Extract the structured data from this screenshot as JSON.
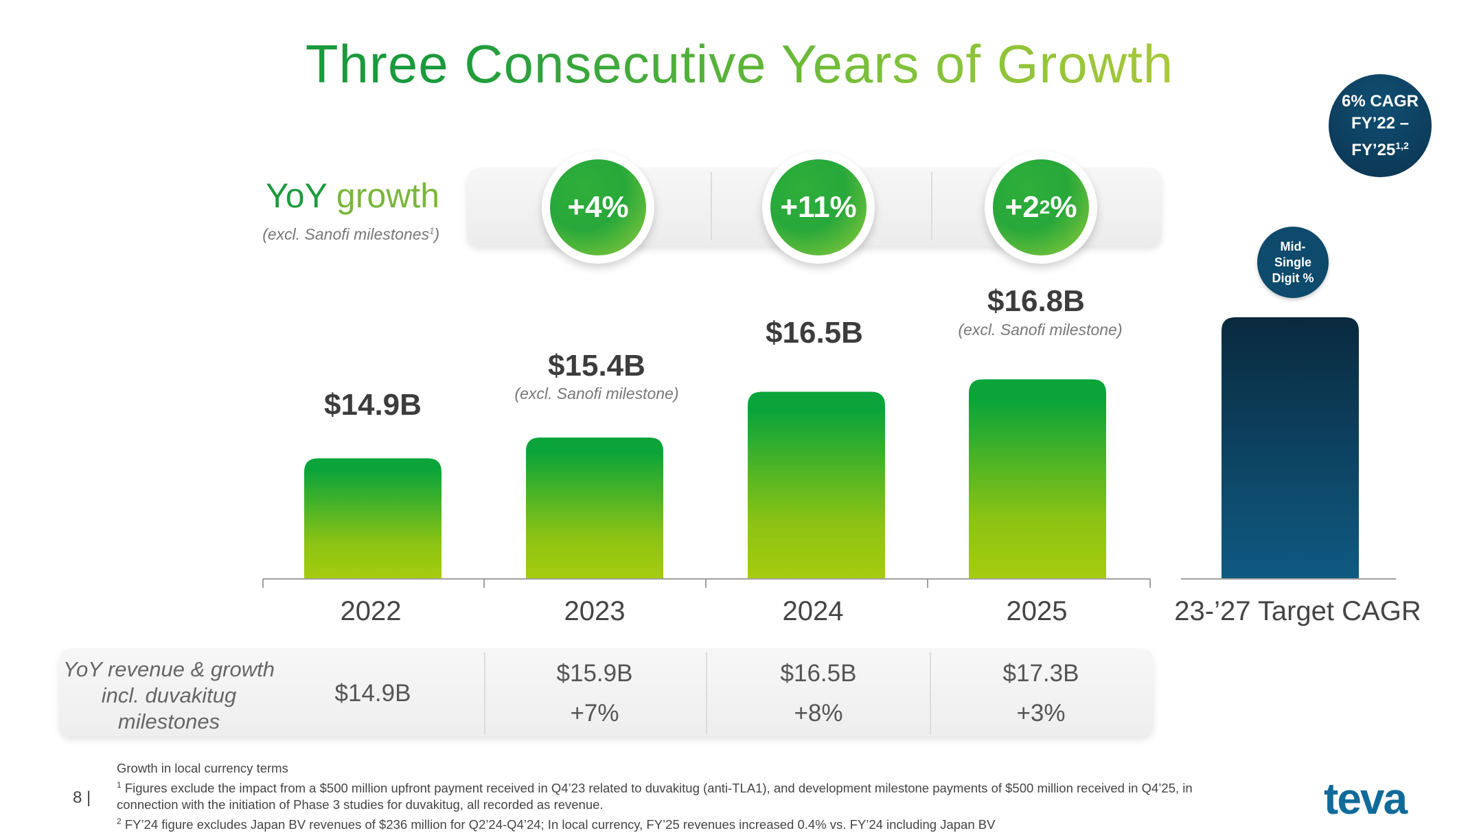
{
  "title": "Three Consecutive Years of Growth",
  "cagr_badge": {
    "line1": "6% CAGR",
    "line2": "FY’22 –",
    "line3": "FY’25",
    "sup": "1,2"
  },
  "yoy": {
    "label_a": "YoY ",
    "label_b": "growth",
    "sub": "(excl. Sanofi milestones",
    "sub_sup": "1",
    "sub_end": ")"
  },
  "growth_badges": [
    {
      "pre": "+4%",
      "sup": ""
    },
    {
      "pre": "+11%",
      "sup": ""
    },
    {
      "pre": "+2",
      "sup": "2",
      "post": "%"
    }
  ],
  "target_badge": "Mid-\nSingle\nDigit %",
  "colors": {
    "green_dark": "#0aa43a",
    "green_light": "#a6cc0e",
    "navy_dark": "#0a2a3e",
    "navy_light": "#0f5a82"
  },
  "chart_data": {
    "type": "bar",
    "title": "Three Consecutive Years of Growth",
    "categories": [
      "2022",
      "2023",
      "2024",
      "2025",
      "23-’27 Target CAGR"
    ],
    "values": [
      14.9,
      15.4,
      16.5,
      16.8,
      null
    ],
    "value_labels": [
      "$14.9B",
      "$15.4B",
      "$16.5B",
      "$16.8B",
      ""
    ],
    "value_notes": [
      "",
      "(excl. Sanofi milestone)",
      "",
      "(excl. Sanofi milestone)",
      ""
    ],
    "yoy_growth": [
      "",
      "+4%",
      "+11%",
      "+2%"
    ],
    "target_label": "Mid-Single Digit %",
    "ylim": [
      12.0,
      17.5
    ]
  },
  "bottom": {
    "title": "YoY revenue & growth incl. duvakitug milestones",
    "revenue": [
      "$14.9B",
      "$15.9B",
      "$16.5B",
      "$17.3B"
    ],
    "growth": [
      "",
      "+7%",
      "+8%",
      "+3%"
    ]
  },
  "footnotes": {
    "line0": "Growth in local currency terms",
    "sup1": "1",
    "line1": " Figures exclude the impact from a $500 million upfront payment received in Q4’23 related to duvakitug (anti-TLA1), and development milestone payments of $500 million received in Q4’25, in",
    "line1b": "connection with the initiation of Phase 3 studies for duvakitug, all recorded as revenue.",
    "sup2": "2",
    "line2": " FY’24 figure excludes Japan BV revenues of $236 million for Q2’24-Q4’24; In local currency, FY’25 revenues increased 0.4% vs. FY’24 including Japan BV"
  },
  "page_number": "8 |",
  "logo": "teva"
}
